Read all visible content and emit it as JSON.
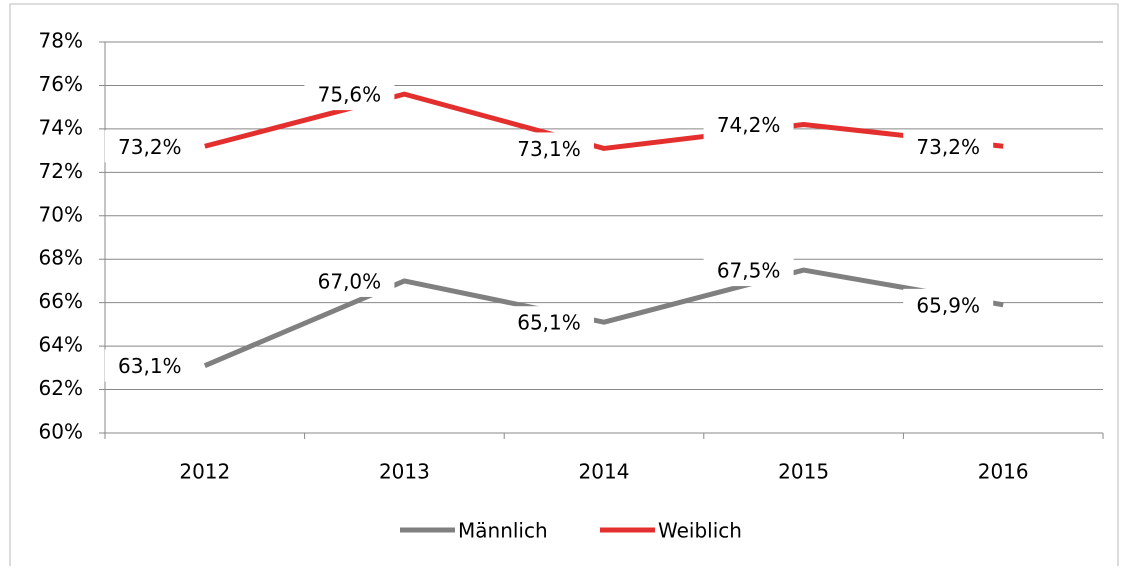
{
  "chart_data": {
    "type": "line",
    "categories": [
      "2012",
      "2013",
      "2014",
      "2015",
      "2016"
    ],
    "series": [
      {
        "name": "Männlich",
        "color": "#808080",
        "values": [
          63.1,
          67.0,
          65.1,
          67.5,
          65.9
        ],
        "value_labels": [
          "63,1%",
          "67,0%",
          "65,1%",
          "67,5%",
          "65,9%"
        ]
      },
      {
        "name": "Weiblich",
        "color": "#e3302f",
        "values": [
          73.2,
          75.6,
          73.1,
          74.2,
          73.2
        ],
        "value_labels": [
          "73,2%",
          "75,6%",
          "73,1%",
          "74,2%",
          "73,2%"
        ]
      }
    ],
    "ylim": [
      60,
      78
    ],
    "yticks": [
      {
        "value": 60,
        "label": "60%"
      },
      {
        "value": 62,
        "label": "62%"
      },
      {
        "value": 64,
        "label": "64%"
      },
      {
        "value": 66,
        "label": "66%"
      },
      {
        "value": 68,
        "label": "68%"
      },
      {
        "value": 70,
        "label": "70%"
      },
      {
        "value": 72,
        "label": "72%"
      },
      {
        "value": 74,
        "label": "74%"
      },
      {
        "value": 76,
        "label": "76%"
      },
      {
        "value": 78,
        "label": "78%"
      }
    ],
    "grid": true,
    "legend": "bottom"
  }
}
